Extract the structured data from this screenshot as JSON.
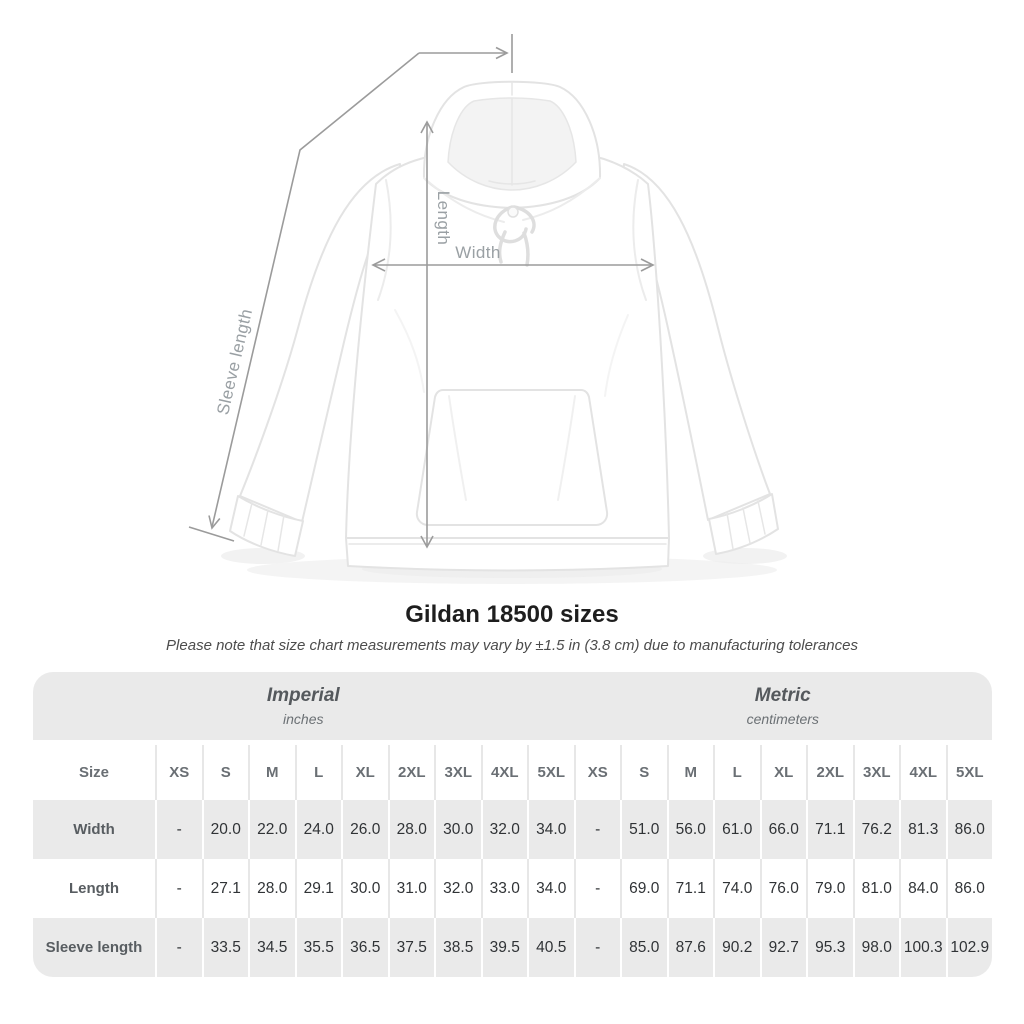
{
  "title": "Gildan 18500 sizes",
  "subtitle": "Please note that size chart measurements may vary by ±1.5 in (3.8 cm) due to manufacturing tolerances",
  "diagram": {
    "labels": {
      "sleeve_length": "Sleeve length",
      "length": "Length",
      "width": "Width"
    },
    "line_color": "#9b9b9b",
    "label_color": "#9aa0a4"
  },
  "colors": {
    "band_gray": "#eaeaea",
    "separator_gray": "#e7e7e7",
    "value_text": "#303336",
    "header_text": "#55595d"
  },
  "chart_data": {
    "type": "table",
    "title": "Gildan 18500 sizes",
    "note": "Please note that size chart measurements may vary by ±1.5 in (3.8 cm) due to manufacturing tolerances",
    "size_header": "Size",
    "sizes": [
      "XS",
      "S",
      "M",
      "L",
      "XL",
      "2XL",
      "3XL",
      "4XL",
      "5XL"
    ],
    "unit_groups": [
      {
        "label": "Imperial",
        "sublabel": "inches"
      },
      {
        "label": "Metric",
        "sublabel": "centimeters"
      }
    ],
    "rows": [
      {
        "label": "Width",
        "imperial": [
          "-",
          "20.0",
          "22.0",
          "24.0",
          "26.0",
          "28.0",
          "30.0",
          "32.0",
          "34.0"
        ],
        "metric": [
          "-",
          "51.0",
          "56.0",
          "61.0",
          "66.0",
          "71.1",
          "76.2",
          "81.3",
          "86.0"
        ]
      },
      {
        "label": "Length",
        "imperial": [
          "-",
          "27.1",
          "28.0",
          "29.1",
          "30.0",
          "31.0",
          "32.0",
          "33.0",
          "34.0"
        ],
        "metric": [
          "-",
          "69.0",
          "71.1",
          "74.0",
          "76.0",
          "79.0",
          "81.0",
          "84.0",
          "86.0"
        ]
      },
      {
        "label": "Sleeve length",
        "imperial": [
          "-",
          "33.5",
          "34.5",
          "35.5",
          "36.5",
          "37.5",
          "38.5",
          "39.5",
          "40.5"
        ],
        "metric": [
          "-",
          "85.0",
          "87.6",
          "90.2",
          "92.7",
          "95.3",
          "98.0",
          "100.3",
          "102.9"
        ]
      }
    ]
  }
}
